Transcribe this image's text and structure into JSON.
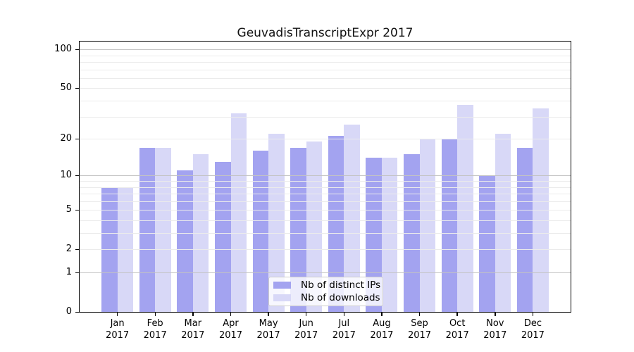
{
  "chart_data": {
    "type": "bar",
    "title": "GeuvadisTranscriptExpr 2017",
    "scale": "log1p",
    "ylim": [
      0,
      116
    ],
    "grid_on": true,
    "legend_position": "lower center",
    "yticks": [
      {
        "value": 0,
        "label": "0"
      },
      {
        "value": 1,
        "label": "1"
      },
      {
        "value": 2,
        "label": "2"
      },
      {
        "value": 5,
        "label": "5"
      },
      {
        "value": 10,
        "label": "10"
      },
      {
        "value": 20,
        "label": "20"
      },
      {
        "value": 50,
        "label": "50"
      },
      {
        "value": 100,
        "label": "100"
      }
    ],
    "grid": {
      "major": [
        1,
        10,
        100
      ],
      "minor": [
        2,
        3,
        4,
        5,
        6,
        7,
        8,
        9,
        20,
        30,
        40,
        50,
        60,
        70,
        80,
        90
      ]
    },
    "categories": [
      {
        "month": "Jan",
        "year": "2017"
      },
      {
        "month": "Feb",
        "year": "2017"
      },
      {
        "month": "Mar",
        "year": "2017"
      },
      {
        "month": "Apr",
        "year": "2017"
      },
      {
        "month": "May",
        "year": "2017"
      },
      {
        "month": "Jun",
        "year": "2017"
      },
      {
        "month": "Jul",
        "year": "2017"
      },
      {
        "month": "Aug",
        "year": "2017"
      },
      {
        "month": "Sep",
        "year": "2017"
      },
      {
        "month": "Oct",
        "year": "2017"
      },
      {
        "month": "Nov",
        "year": "2017"
      },
      {
        "month": "Dec",
        "year": "2017"
      }
    ],
    "series": [
      {
        "key": "ips",
        "name": "Nb of distinct IPs",
        "color": "#a3a3f0",
        "values": [
          8,
          17,
          11,
          13,
          16,
          17,
          21,
          14,
          15,
          20,
          10,
          17
        ]
      },
      {
        "key": "downloads",
        "name": "Nb of downloads",
        "color": "#d8d8f7",
        "values": [
          8,
          17,
          15,
          32,
          22,
          19,
          26,
          14,
          20,
          37,
          22,
          35
        ]
      }
    ]
  },
  "colors": {
    "grid_major": "#c3c3c3",
    "grid_minor": "#ebebeb",
    "spine": "#000000",
    "legend_border": "#cccccc",
    "background": "#ffffff"
  }
}
